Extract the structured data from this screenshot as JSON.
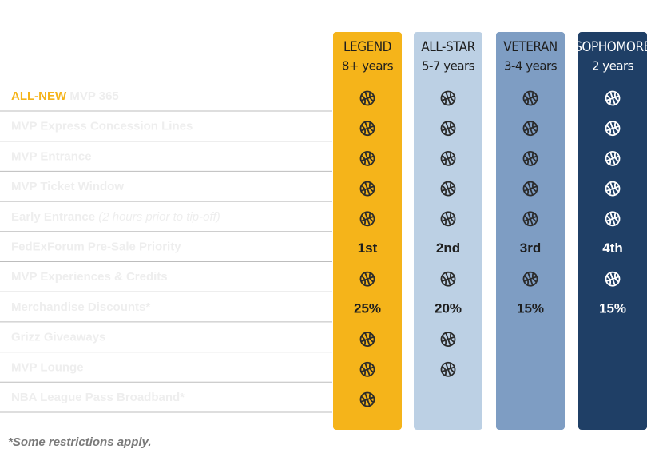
{
  "tiers": [
    {
      "name": "LEGEND",
      "years": "8+ years"
    },
    {
      "name": "ALL-STAR",
      "years": "5-7 years"
    },
    {
      "name": "VETERAN",
      "years": "3-4 years"
    },
    {
      "name": "SOPHOMORE",
      "years": "2 years"
    }
  ],
  "rows": [
    {
      "tag": "ALL-NEW",
      "label": "MVP 365",
      "cells": [
        true,
        true,
        true,
        true
      ]
    },
    {
      "label": "MVP Express Concession Lines",
      "cells": [
        true,
        true,
        true,
        true
      ]
    },
    {
      "label": "MVP Entrance",
      "cells": [
        true,
        true,
        true,
        true
      ]
    },
    {
      "label": "MVP Ticket Window",
      "cells": [
        true,
        true,
        true,
        true
      ]
    },
    {
      "label": "Early Entrance",
      "note": "(2 hours prior to tip-off)",
      "cells": [
        true,
        true,
        true,
        true
      ]
    },
    {
      "label": "FedExForum Pre-Sale Priority",
      "cells": [
        "1st",
        "2nd",
        "3rd",
        "4th"
      ]
    },
    {
      "label": "MVP Experiences & Credits",
      "cells": [
        true,
        true,
        true,
        true
      ]
    },
    {
      "label": "Merchandise Discounts*",
      "cells": [
        "25%",
        "20%",
        "15%",
        "15%"
      ]
    },
    {
      "label": "Grizz Giveaways",
      "cells": [
        true,
        true,
        false,
        false
      ]
    },
    {
      "label": "MVP Lounge",
      "cells": [
        true,
        true,
        false,
        false
      ]
    },
    {
      "label": "NBA League Pass Broadband*",
      "cells": [
        true,
        false,
        false,
        false
      ]
    }
  ],
  "footnote": "*Some restrictions apply."
}
